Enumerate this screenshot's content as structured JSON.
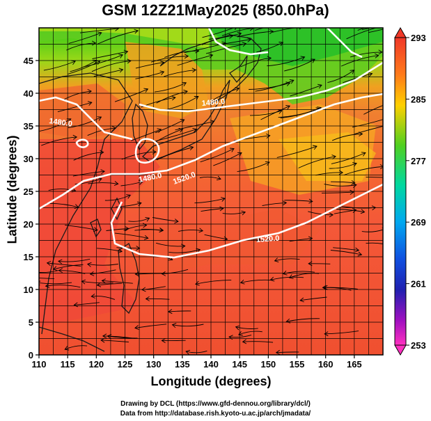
{
  "title": "GSM 12Z21May2025 (850.0hPa)",
  "xaxis": {
    "label": "Longitude (degrees)",
    "range": [
      110,
      170
    ],
    "ticks": [
      110,
      115,
      120,
      125,
      130,
      135,
      140,
      145,
      150,
      155,
      160,
      165
    ]
  },
  "yaxis": {
    "label": "Latitude  (degrees)",
    "range": [
      0,
      50
    ],
    "ticks": [
      0,
      5,
      10,
      15,
      20,
      25,
      30,
      35,
      40,
      45
    ]
  },
  "colorbar": {
    "ticks": [
      "293",
      "285",
      "277",
      "269",
      "261",
      "253"
    ],
    "range": [
      253,
      293
    ]
  },
  "contours": [
    {
      "label": "1480.0",
      "value": 1480
    },
    {
      "label": "1480.0",
      "value": 1480
    },
    {
      "label": "1480.0",
      "value": 1480
    },
    {
      "label": "1520.0",
      "value": 1520
    },
    {
      "label": "1520.0",
      "value": 1520
    }
  ],
  "credits": {
    "line1": "Drawing by DCL (https://www.gfd-dennou.org/library/dcl/)",
    "line2": "Data from http://database.rish.kyoto-u.ac.jp/arch/jmadata/"
  }
}
